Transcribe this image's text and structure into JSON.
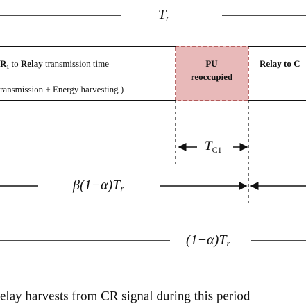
{
  "period_label": {
    "symbol": "T",
    "sub": "r"
  },
  "segments": [
    {
      "line1": [
        "R₁",
        " to ",
        "Relay",
        " transmission time"
      ],
      "line2": "ransmission + Energy harvesting )"
    },
    {
      "line1": "PU",
      "line2": "reoccupied"
    },
    {
      "line1": "Relay to C"
    }
  ],
  "interval_label": {
    "symbol": "T",
    "sub": "C1"
  },
  "harvest_label": {
    "symbol": "β(1−α)T",
    "sub": "r"
  },
  "transmit_label": {
    "symbol": "(1−α)T",
    "sub": "r"
  },
  "caption": "elay harvests from CR signal during this period"
}
